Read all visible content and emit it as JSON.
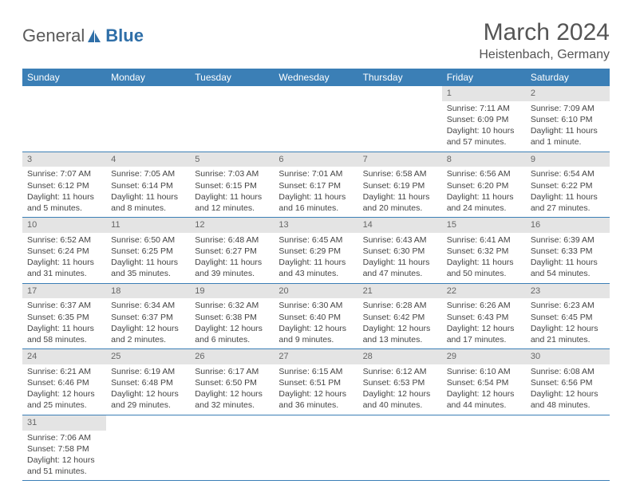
{
  "brand": {
    "word1": "General",
    "word2": "Blue"
  },
  "title": "March 2024",
  "location": "Heistenbach, Germany",
  "colors": {
    "header_bg": "#3b7fb6",
    "header_text": "#ffffff",
    "daynum_bg": "#e4e4e4",
    "rule": "#3b7fb6",
    "brand_blue": "#2f6fa8"
  },
  "daysOfWeek": [
    "Sunday",
    "Monday",
    "Tuesday",
    "Wednesday",
    "Thursday",
    "Friday",
    "Saturday"
  ],
  "weeks": [
    [
      null,
      null,
      null,
      null,
      null,
      {
        "n": "1",
        "sunrise": "Sunrise: 7:11 AM",
        "sunset": "Sunset: 6:09 PM",
        "daylight1": "Daylight: 10 hours",
        "daylight2": "and 57 minutes."
      },
      {
        "n": "2",
        "sunrise": "Sunrise: 7:09 AM",
        "sunset": "Sunset: 6:10 PM",
        "daylight1": "Daylight: 11 hours",
        "daylight2": "and 1 minute."
      }
    ],
    [
      {
        "n": "3",
        "sunrise": "Sunrise: 7:07 AM",
        "sunset": "Sunset: 6:12 PM",
        "daylight1": "Daylight: 11 hours",
        "daylight2": "and 5 minutes."
      },
      {
        "n": "4",
        "sunrise": "Sunrise: 7:05 AM",
        "sunset": "Sunset: 6:14 PM",
        "daylight1": "Daylight: 11 hours",
        "daylight2": "and 8 minutes."
      },
      {
        "n": "5",
        "sunrise": "Sunrise: 7:03 AM",
        "sunset": "Sunset: 6:15 PM",
        "daylight1": "Daylight: 11 hours",
        "daylight2": "and 12 minutes."
      },
      {
        "n": "6",
        "sunrise": "Sunrise: 7:01 AM",
        "sunset": "Sunset: 6:17 PM",
        "daylight1": "Daylight: 11 hours",
        "daylight2": "and 16 minutes."
      },
      {
        "n": "7",
        "sunrise": "Sunrise: 6:58 AM",
        "sunset": "Sunset: 6:19 PM",
        "daylight1": "Daylight: 11 hours",
        "daylight2": "and 20 minutes."
      },
      {
        "n": "8",
        "sunrise": "Sunrise: 6:56 AM",
        "sunset": "Sunset: 6:20 PM",
        "daylight1": "Daylight: 11 hours",
        "daylight2": "and 24 minutes."
      },
      {
        "n": "9",
        "sunrise": "Sunrise: 6:54 AM",
        "sunset": "Sunset: 6:22 PM",
        "daylight1": "Daylight: 11 hours",
        "daylight2": "and 27 minutes."
      }
    ],
    [
      {
        "n": "10",
        "sunrise": "Sunrise: 6:52 AM",
        "sunset": "Sunset: 6:24 PM",
        "daylight1": "Daylight: 11 hours",
        "daylight2": "and 31 minutes."
      },
      {
        "n": "11",
        "sunrise": "Sunrise: 6:50 AM",
        "sunset": "Sunset: 6:25 PM",
        "daylight1": "Daylight: 11 hours",
        "daylight2": "and 35 minutes."
      },
      {
        "n": "12",
        "sunrise": "Sunrise: 6:48 AM",
        "sunset": "Sunset: 6:27 PM",
        "daylight1": "Daylight: 11 hours",
        "daylight2": "and 39 minutes."
      },
      {
        "n": "13",
        "sunrise": "Sunrise: 6:45 AM",
        "sunset": "Sunset: 6:29 PM",
        "daylight1": "Daylight: 11 hours",
        "daylight2": "and 43 minutes."
      },
      {
        "n": "14",
        "sunrise": "Sunrise: 6:43 AM",
        "sunset": "Sunset: 6:30 PM",
        "daylight1": "Daylight: 11 hours",
        "daylight2": "and 47 minutes."
      },
      {
        "n": "15",
        "sunrise": "Sunrise: 6:41 AM",
        "sunset": "Sunset: 6:32 PM",
        "daylight1": "Daylight: 11 hours",
        "daylight2": "and 50 minutes."
      },
      {
        "n": "16",
        "sunrise": "Sunrise: 6:39 AM",
        "sunset": "Sunset: 6:33 PM",
        "daylight1": "Daylight: 11 hours",
        "daylight2": "and 54 minutes."
      }
    ],
    [
      {
        "n": "17",
        "sunrise": "Sunrise: 6:37 AM",
        "sunset": "Sunset: 6:35 PM",
        "daylight1": "Daylight: 11 hours",
        "daylight2": "and 58 minutes."
      },
      {
        "n": "18",
        "sunrise": "Sunrise: 6:34 AM",
        "sunset": "Sunset: 6:37 PM",
        "daylight1": "Daylight: 12 hours",
        "daylight2": "and 2 minutes."
      },
      {
        "n": "19",
        "sunrise": "Sunrise: 6:32 AM",
        "sunset": "Sunset: 6:38 PM",
        "daylight1": "Daylight: 12 hours",
        "daylight2": "and 6 minutes."
      },
      {
        "n": "20",
        "sunrise": "Sunrise: 6:30 AM",
        "sunset": "Sunset: 6:40 PM",
        "daylight1": "Daylight: 12 hours",
        "daylight2": "and 9 minutes."
      },
      {
        "n": "21",
        "sunrise": "Sunrise: 6:28 AM",
        "sunset": "Sunset: 6:42 PM",
        "daylight1": "Daylight: 12 hours",
        "daylight2": "and 13 minutes."
      },
      {
        "n": "22",
        "sunrise": "Sunrise: 6:26 AM",
        "sunset": "Sunset: 6:43 PM",
        "daylight1": "Daylight: 12 hours",
        "daylight2": "and 17 minutes."
      },
      {
        "n": "23",
        "sunrise": "Sunrise: 6:23 AM",
        "sunset": "Sunset: 6:45 PM",
        "daylight1": "Daylight: 12 hours",
        "daylight2": "and 21 minutes."
      }
    ],
    [
      {
        "n": "24",
        "sunrise": "Sunrise: 6:21 AM",
        "sunset": "Sunset: 6:46 PM",
        "daylight1": "Daylight: 12 hours",
        "daylight2": "and 25 minutes."
      },
      {
        "n": "25",
        "sunrise": "Sunrise: 6:19 AM",
        "sunset": "Sunset: 6:48 PM",
        "daylight1": "Daylight: 12 hours",
        "daylight2": "and 29 minutes."
      },
      {
        "n": "26",
        "sunrise": "Sunrise: 6:17 AM",
        "sunset": "Sunset: 6:50 PM",
        "daylight1": "Daylight: 12 hours",
        "daylight2": "and 32 minutes."
      },
      {
        "n": "27",
        "sunrise": "Sunrise: 6:15 AM",
        "sunset": "Sunset: 6:51 PM",
        "daylight1": "Daylight: 12 hours",
        "daylight2": "and 36 minutes."
      },
      {
        "n": "28",
        "sunrise": "Sunrise: 6:12 AM",
        "sunset": "Sunset: 6:53 PM",
        "daylight1": "Daylight: 12 hours",
        "daylight2": "and 40 minutes."
      },
      {
        "n": "29",
        "sunrise": "Sunrise: 6:10 AM",
        "sunset": "Sunset: 6:54 PM",
        "daylight1": "Daylight: 12 hours",
        "daylight2": "and 44 minutes."
      },
      {
        "n": "30",
        "sunrise": "Sunrise: 6:08 AM",
        "sunset": "Sunset: 6:56 PM",
        "daylight1": "Daylight: 12 hours",
        "daylight2": "and 48 minutes."
      }
    ],
    [
      {
        "n": "31",
        "sunrise": "Sunrise: 7:06 AM",
        "sunset": "Sunset: 7:58 PM",
        "daylight1": "Daylight: 12 hours",
        "daylight2": "and 51 minutes."
      },
      null,
      null,
      null,
      null,
      null,
      null
    ]
  ]
}
